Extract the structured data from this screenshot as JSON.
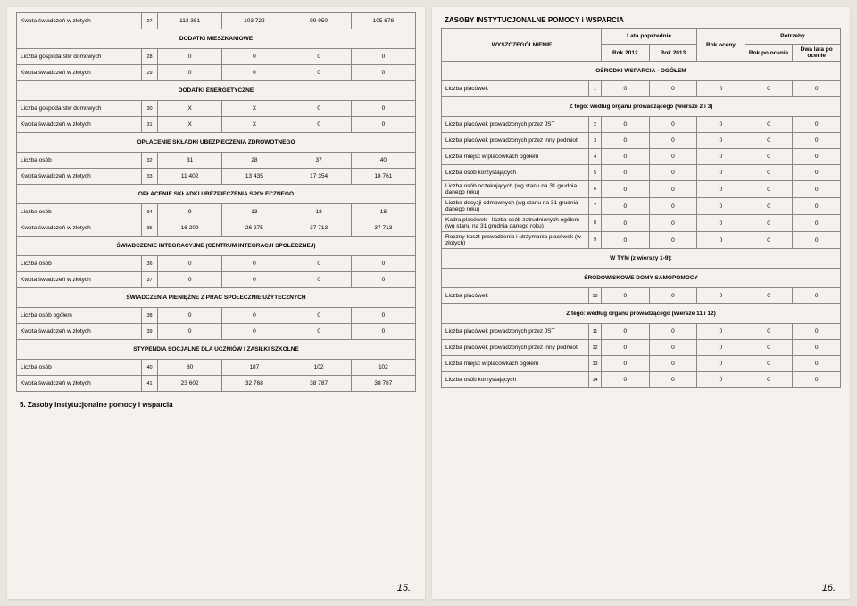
{
  "colors": {
    "bg": "#e8e4de",
    "paper": "#f5f2ed",
    "border": "#888888",
    "text": "#333333"
  },
  "left": {
    "rows": [
      {
        "label": "Kwota świadczeń w złotych",
        "n": "27",
        "v": [
          "113 361",
          "103 722",
          "99 950",
          "105 678"
        ]
      }
    ],
    "s1": {
      "title": "DODATKI MIESZKANIOWE",
      "rows": [
        {
          "label": "Liczba gospodarstw domowych",
          "n": "28",
          "v": [
            "0",
            "0",
            "0",
            "0"
          ]
        },
        {
          "label": "Kwota świadczeń w złotych",
          "n": "29",
          "v": [
            "0",
            "0",
            "0",
            "0"
          ]
        }
      ]
    },
    "s2": {
      "title": "DODATKI ENERGETYCZNE",
      "rows": [
        {
          "label": "Liczba  gospodarstw domowych",
          "n": "30",
          "v": [
            "X",
            "X",
            "0",
            "0"
          ]
        },
        {
          "label": "Kwota świadczeń w złotych",
          "n": "31",
          "v": [
            "X",
            "X",
            "0",
            "0"
          ]
        }
      ]
    },
    "s3": {
      "title": "OPŁACENIE SKŁADKI UBEZPIECZENIA ZDROWOTNEGO",
      "rows": [
        {
          "label": "Liczba osób",
          "n": "32",
          "v": [
            "31",
            "28",
            "37",
            "40"
          ]
        },
        {
          "label": "Kwota świadczeń w złotych",
          "n": "33",
          "v": [
            "11 402",
            "13 435",
            "17 354",
            "18 761"
          ]
        }
      ]
    },
    "s4": {
      "title": "OPŁACENIE SKŁADKI UBEZPIECZENIA SPOŁECZNEGO",
      "rows": [
        {
          "label": "Liczba osób",
          "n": "34",
          "v": [
            "9",
            "13",
            "18",
            "18"
          ]
        },
        {
          "label": "Kwota świadczeń w złotych",
          "n": "35",
          "v": [
            "16 209",
            "26 275",
            "37 713",
            "37 713"
          ]
        }
      ]
    },
    "s5": {
      "title": "ŚWIADCZENIE INTEGRACYJNE (CENTRUM INTEGRACJI SPOŁECZNEJ)",
      "rows": [
        {
          "label": "Liczba osób",
          "n": "36",
          "v": [
            "0",
            "0",
            "0",
            "0"
          ]
        },
        {
          "label": "Kwota świadczeń w złotych",
          "n": "37",
          "v": [
            "0",
            "0",
            "0",
            "0"
          ]
        }
      ]
    },
    "s6": {
      "title": "ŚWIADCZENIA PIENIĘŻNE Z PRAC SPOŁECZNIE UŻYTECZNYCH",
      "rows": [
        {
          "label": "Liczba osób ogółem",
          "n": "38",
          "v": [
            "0",
            "0",
            "0",
            "0"
          ]
        },
        {
          "label": "Kwota świadczeń w złotych",
          "n": "39",
          "v": [
            "0",
            "0",
            "0",
            "0"
          ]
        }
      ]
    },
    "s7": {
      "title": "STYPENDIA SOCJALNE DLA UCZNIÓW I ZASIŁKI SZKOLNE",
      "rows": [
        {
          "label": "Liczba osób",
          "n": "40",
          "v": [
            "80",
            "187",
            "102",
            "102"
          ]
        },
        {
          "label": "Kwota świadczeń w złotych",
          "n": "41",
          "v": [
            "23 602",
            "32 768",
            "38 787",
            "38 787"
          ]
        }
      ]
    },
    "footer": "5. Zasoby instytucjonalne pomocy i wsparcia",
    "pagenum": "15."
  },
  "right": {
    "title": "ZASOBY INSTYTUCJONALNE POMOCY i WSPARCIA",
    "header": {
      "wyszcz": "WYSZCZEGÓLNIENIE",
      "lata": "Lata poprzednie",
      "r2012": "Rok 2012",
      "r2013": "Rok 2013",
      "oceny": "Rok oceny",
      "potrzeby": "Potrzeby",
      "po": "Rok po ocenie",
      "dwa": "Dwa lata po ocenie"
    },
    "sec1": {
      "title": "OŚRODKI WSPARCIA - OGÓŁEM"
    },
    "rows1": [
      {
        "label": "Liczba placówek",
        "n": "1",
        "v": [
          "0",
          "0",
          "0",
          "0",
          "0"
        ]
      }
    ],
    "mid1": "Z tego: według organu prowadzącego (wiersze 2 i 3)",
    "rows2": [
      {
        "label": "Liczba placówek prowadzonych przez JST",
        "n": "2",
        "v": [
          "0",
          "0",
          "0",
          "0",
          "0"
        ]
      },
      {
        "label": "Liczba placówek prowadzonych przez inny podmiot",
        "n": "3",
        "v": [
          "0",
          "0",
          "0",
          "0",
          "0"
        ]
      },
      {
        "label": "Liczba miejsc w placówkach ogółem",
        "n": "4",
        "v": [
          "0",
          "0",
          "0",
          "0",
          "0"
        ]
      },
      {
        "label": "Liczba osób korzystających",
        "n": "5",
        "v": [
          "0",
          "0",
          "0",
          "0",
          "0"
        ]
      },
      {
        "label": "Liczba osób oczekujących (wg stanu na 31 grudnia danego roku)",
        "n": "6",
        "v": [
          "0",
          "0",
          "0",
          "0",
          "0"
        ]
      },
      {
        "label": "Liczba decyzji odmownych (wg stanu na 31 grudnia danego roku)",
        "n": "7",
        "v": [
          "0",
          "0",
          "0",
          "0",
          "0"
        ]
      },
      {
        "label": "Kadra placówek - liczba osób zatrudnionych ogółem (wg stanu na 31 grudnia danego roku)",
        "n": "8",
        "v": [
          "0",
          "0",
          "0",
          "0",
          "0"
        ]
      },
      {
        "label": "Roczny koszt prowadzenia i utrzymania placówek (w złotych)",
        "n": "9",
        "v": [
          "0",
          "0",
          "0",
          "0",
          "0"
        ]
      }
    ],
    "mid2": "W TYM (z wierszy 1-9):",
    "sec2": "ŚRODOWISKOWE DOMY SAMOPOMOCY",
    "rows3": [
      {
        "label": "Liczba placówek",
        "n": "10",
        "v": [
          "0",
          "0",
          "0",
          "0",
          "0"
        ]
      }
    ],
    "mid3": "Z tego: według organu prowadzącego (wiersze 11 i 12)",
    "rows4": [
      {
        "label": "Liczba placówek prowadzonych przez JST",
        "n": "11",
        "v": [
          "0",
          "0",
          "0",
          "0",
          "0"
        ]
      },
      {
        "label": "Liczba placówek prowadzonych przez inny podmiot",
        "n": "12",
        "v": [
          "0",
          "0",
          "0",
          "0",
          "0"
        ]
      },
      {
        "label": "Liczba miejsc w placówkach ogółem",
        "n": "13",
        "v": [
          "0",
          "0",
          "0",
          "0",
          "0"
        ]
      },
      {
        "label": "Liczba osób korzystających",
        "n": "14",
        "v": [
          "0",
          "0",
          "0",
          "0",
          "0"
        ]
      }
    ],
    "pagenum": "16."
  }
}
